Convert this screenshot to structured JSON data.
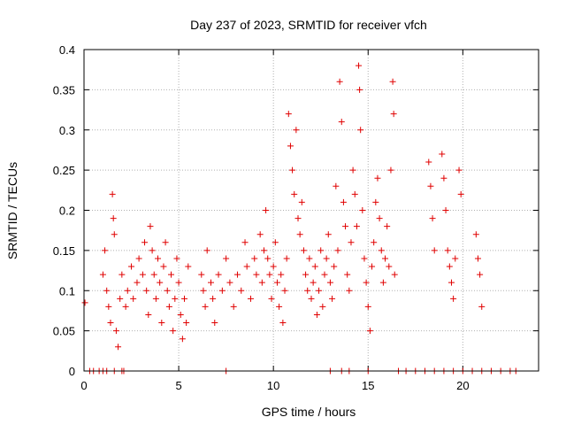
{
  "chart_data": {
    "type": "scatter",
    "title": "Day 237 of 2023, SRMTID for receiver vfch",
    "xlabel": "GPS time / hours",
    "ylabel": "SRMTID / TECUs",
    "xlim": [
      0,
      24
    ],
    "ylim": [
      0,
      0.4
    ],
    "x_ticks": [
      0,
      5,
      10,
      15,
      20
    ],
    "x_tick_labels": [
      "0",
      "5",
      "10",
      "15",
      "20"
    ],
    "y_ticks": [
      0,
      0.05,
      0.1,
      0.15,
      0.2,
      0.25,
      0.3,
      0.35,
      0.4
    ],
    "y_tick_labels": [
      "0",
      "0.05",
      "0.1",
      "0.15",
      "0.2",
      "0.25",
      "0.3",
      "0.35",
      "0.4"
    ],
    "grid": true,
    "marker": "+",
    "series_color": "#e00000",
    "series": [
      {
        "name": "SRMTID",
        "points": [
          [
            0.05,
            0.085
          ],
          [
            0.3,
            0
          ],
          [
            0.5,
            0
          ],
          [
            0.8,
            0
          ],
          [
            1.0,
            0
          ],
          [
            1.2,
            0
          ],
          [
            1.6,
            0
          ],
          [
            2.0,
            0
          ],
          [
            2.1,
            0
          ],
          [
            1.0,
            0.12
          ],
          [
            1.1,
            0.15
          ],
          [
            1.2,
            0.1
          ],
          [
            1.3,
            0.08
          ],
          [
            1.4,
            0.06
          ],
          [
            1.5,
            0.22
          ],
          [
            1.55,
            0.19
          ],
          [
            1.6,
            0.17
          ],
          [
            1.7,
            0.05
          ],
          [
            1.8,
            0.03
          ],
          [
            1.9,
            0.09
          ],
          [
            2.0,
            0.12
          ],
          [
            2.2,
            0.08
          ],
          [
            2.3,
            0.1
          ],
          [
            2.5,
            0.13
          ],
          [
            2.6,
            0.09
          ],
          [
            2.8,
            0.11
          ],
          [
            2.9,
            0.14
          ],
          [
            3.1,
            0.12
          ],
          [
            3.2,
            0.16
          ],
          [
            3.3,
            0.1
          ],
          [
            3.4,
            0.07
          ],
          [
            3.5,
            0.18
          ],
          [
            3.6,
            0.15
          ],
          [
            3.7,
            0.12
          ],
          [
            3.8,
            0.09
          ],
          [
            3.9,
            0.14
          ],
          [
            4.0,
            0.11
          ],
          [
            4.1,
            0.06
          ],
          [
            4.2,
            0.13
          ],
          [
            4.3,
            0.16
          ],
          [
            4.4,
            0.1
          ],
          [
            4.5,
            0.08
          ],
          [
            4.6,
            0.12
          ],
          [
            4.7,
            0.05
          ],
          [
            4.8,
            0.09
          ],
          [
            4.9,
            0.14
          ],
          [
            5.0,
            0.11
          ],
          [
            5.1,
            0.07
          ],
          [
            5.2,
            0.04
          ],
          [
            5.3,
            0.09
          ],
          [
            5.4,
            0.06
          ],
          [
            5.5,
            0.13
          ],
          [
            6.2,
            0.12
          ],
          [
            6.3,
            0.1
          ],
          [
            6.4,
            0.08
          ],
          [
            6.5,
            0.15
          ],
          [
            6.7,
            0.11
          ],
          [
            6.8,
            0.09
          ],
          [
            6.9,
            0.06
          ],
          [
            7.1,
            0.12
          ],
          [
            7.3,
            0.1
          ],
          [
            7.5,
            0.14
          ],
          [
            7.7,
            0.11
          ],
          [
            7.9,
            0.08
          ],
          [
            8.1,
            0.12
          ],
          [
            8.3,
            0.1
          ],
          [
            8.5,
            0.16
          ],
          [
            8.6,
            0.13
          ],
          [
            8.8,
            0.09
          ],
          [
            9.0,
            0.14
          ],
          [
            9.1,
            0.12
          ],
          [
            9.3,
            0.17
          ],
          [
            9.4,
            0.11
          ],
          [
            9.5,
            0.15
          ],
          [
            9.6,
            0.2
          ],
          [
            9.7,
            0.14
          ],
          [
            9.8,
            0.12
          ],
          [
            9.9,
            0.09
          ],
          [
            10.0,
            0.13
          ],
          [
            10.1,
            0.16
          ],
          [
            10.2,
            0.11
          ],
          [
            10.3,
            0.08
          ],
          [
            10.4,
            0.12
          ],
          [
            10.5,
            0.06
          ],
          [
            10.6,
            0.1
          ],
          [
            10.7,
            0.14
          ],
          [
            10.8,
            0.32
          ],
          [
            10.9,
            0.28
          ],
          [
            11.0,
            0.25
          ],
          [
            11.1,
            0.22
          ],
          [
            11.2,
            0.3
          ],
          [
            11.3,
            0.19
          ],
          [
            11.4,
            0.17
          ],
          [
            11.5,
            0.21
          ],
          [
            11.6,
            0.15
          ],
          [
            11.7,
            0.12
          ],
          [
            11.8,
            0.1
          ],
          [
            11.9,
            0.14
          ],
          [
            12.0,
            0.09
          ],
          [
            12.1,
            0.11
          ],
          [
            12.2,
            0.13
          ],
          [
            12.3,
            0.07
          ],
          [
            12.4,
            0.1
          ],
          [
            12.5,
            0.15
          ],
          [
            12.6,
            0.08
          ],
          [
            12.7,
            0.12
          ],
          [
            12.8,
            0.14
          ],
          [
            12.9,
            0.17
          ],
          [
            13.0,
            0.11
          ],
          [
            13.1,
            0.09
          ],
          [
            13.2,
            0.13
          ],
          [
            13.3,
            0.23
          ],
          [
            13.4,
            0.15
          ],
          [
            13.5,
            0.36
          ],
          [
            13.6,
            0.31
          ],
          [
            13.7,
            0.21
          ],
          [
            13.8,
            0.18
          ],
          [
            13.9,
            0.12
          ],
          [
            14.0,
            0.1
          ],
          [
            14.1,
            0.16
          ],
          [
            14.2,
            0.25
          ],
          [
            14.3,
            0.22
          ],
          [
            14.4,
            0.18
          ],
          [
            14.5,
            0.38
          ],
          [
            14.55,
            0.35
          ],
          [
            14.6,
            0.3
          ],
          [
            14.7,
            0.2
          ],
          [
            14.8,
            0.14
          ],
          [
            14.9,
            0.11
          ],
          [
            15.0,
            0.08
          ],
          [
            15.1,
            0.05
          ],
          [
            15.2,
            0.13
          ],
          [
            15.3,
            0.16
          ],
          [
            15.4,
            0.21
          ],
          [
            15.5,
            0.24
          ],
          [
            15.6,
            0.19
          ],
          [
            15.7,
            0.15
          ],
          [
            15.8,
            0.11
          ],
          [
            15.9,
            0.14
          ],
          [
            16.0,
            0.18
          ],
          [
            16.1,
            0.13
          ],
          [
            16.2,
            0.25
          ],
          [
            16.3,
            0.36
          ],
          [
            16.35,
            0.32
          ],
          [
            16.4,
            0.12
          ],
          [
            18.2,
            0.26
          ],
          [
            18.3,
            0.23
          ],
          [
            18.4,
            0.19
          ],
          [
            18.5,
            0.15
          ],
          [
            18.9,
            0.27
          ],
          [
            19.0,
            0.24
          ],
          [
            19.1,
            0.2
          ],
          [
            19.2,
            0.15
          ],
          [
            19.3,
            0.13
          ],
          [
            19.4,
            0.11
          ],
          [
            19.5,
            0.09
          ],
          [
            19.6,
            0.14
          ],
          [
            19.8,
            0.25
          ],
          [
            19.9,
            0.22
          ],
          [
            20.7,
            0.17
          ],
          [
            20.8,
            0.14
          ],
          [
            20.9,
            0.12
          ],
          [
            21.0,
            0.08
          ],
          [
            16.6,
            0
          ],
          [
            17.0,
            0
          ],
          [
            17.5,
            0
          ],
          [
            18.0,
            0
          ],
          [
            18.5,
            0
          ],
          [
            19.0,
            0
          ],
          [
            19.5,
            0
          ],
          [
            20.0,
            0
          ],
          [
            20.5,
            0
          ],
          [
            21.0,
            0
          ],
          [
            21.5,
            0
          ],
          [
            22.0,
            0
          ],
          [
            22.5,
            0
          ],
          [
            22.8,
            0
          ],
          [
            7.5,
            0
          ],
          [
            13.0,
            0
          ],
          [
            13.6,
            0
          ],
          [
            14.0,
            0
          ],
          [
            15.0,
            0
          ]
        ]
      }
    ]
  }
}
